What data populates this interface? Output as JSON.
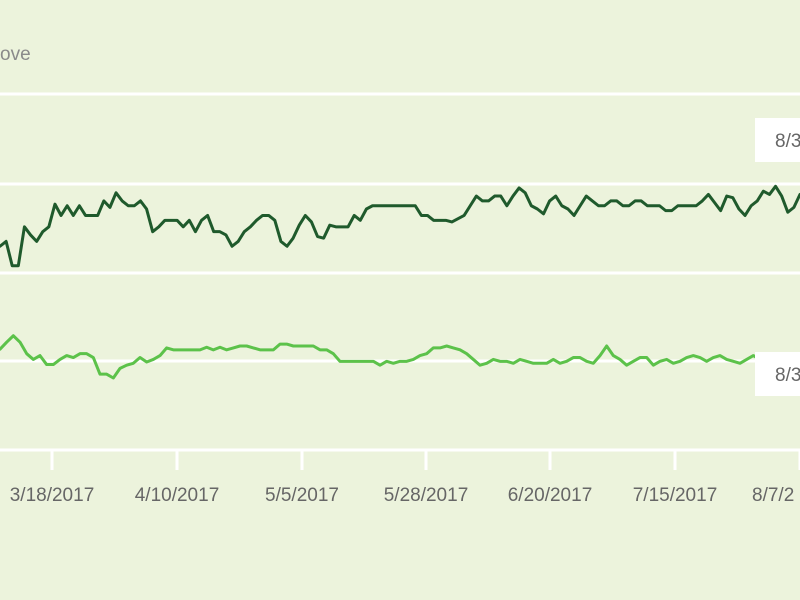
{
  "chart_data": {
    "type": "line",
    "legend_fragment": "ove",
    "x_tick_labels": [
      "3/18/2017",
      "4/10/2017",
      "5/5/2017",
      "5/28/2017",
      "6/20/2017",
      "7/15/2017",
      "8/7/2"
    ],
    "callouts": [
      "8/3",
      "8/3"
    ],
    "grid": true,
    "colors": {
      "upper_series": "#1f5a2c",
      "lower_series": "#5cc24a",
      "gridline": "#ffffff",
      "background": "#ecf3dc"
    },
    "series": [
      {
        "color": "#1f5a2c",
        "values": [
          54.7,
          55.0,
          53.5,
          53.5,
          55.9,
          55.4,
          55.0,
          55.6,
          55.9,
          57.3,
          56.6,
          57.2,
          56.6,
          57.2,
          56.6,
          56.6,
          56.6,
          57.5,
          57.1,
          58.0,
          57.5,
          57.2,
          57.2,
          57.5,
          57.0,
          55.6,
          55.9,
          56.3,
          56.3,
          56.3,
          55.9,
          56.3,
          55.6,
          56.3,
          56.6,
          55.6,
          55.6,
          55.4,
          54.7,
          55.0,
          55.6,
          55.9,
          56.3,
          56.6,
          56.6,
          56.3,
          55.0,
          54.7,
          55.2,
          56.0,
          56.6,
          56.2,
          55.3,
          55.2,
          56.0,
          55.9,
          55.9,
          55.9,
          56.6,
          56.3,
          57.0,
          57.2,
          57.2,
          57.2,
          57.2,
          57.2,
          57.2,
          57.2,
          57.2,
          56.6,
          56.6,
          56.3,
          56.3,
          56.3,
          56.2,
          56.4,
          56.6,
          57.2,
          57.8,
          57.5,
          57.5,
          57.8,
          57.8,
          57.2,
          57.8,
          58.3,
          58.0,
          57.2,
          57.0,
          56.7,
          57.5,
          57.8,
          57.2,
          57.0,
          56.6,
          57.2,
          57.8,
          57.5,
          57.2,
          57.2,
          57.5,
          57.5,
          57.2,
          57.2,
          57.5,
          57.5,
          57.2,
          57.2,
          57.2,
          56.9,
          56.9,
          57.2,
          57.2,
          57.2,
          57.2,
          57.5,
          57.9,
          57.4,
          56.9,
          57.8,
          57.7,
          57.0,
          56.6,
          57.2,
          57.5,
          58.1,
          57.9,
          58.4,
          57.8,
          56.8,
          57.1,
          57.9
        ],
        "y_range": [
          52,
          62
        ]
      },
      {
        "color": "#5cc24a",
        "values": [
          39.5,
          40.6,
          41.6,
          40.6,
          38.8,
          37.9,
          38.5,
          37.1,
          37.1,
          37.9,
          38.5,
          38.2,
          38.8,
          38.8,
          38.2,
          35.6,
          35.6,
          35.0,
          36.5,
          37.0,
          37.3,
          38.2,
          37.5,
          37.9,
          38.5,
          39.7,
          39.4,
          39.4,
          39.4,
          39.4,
          39.4,
          39.8,
          39.4,
          39.8,
          39.4,
          39.7,
          40.0,
          40.0,
          39.7,
          39.4,
          39.4,
          39.4,
          40.3,
          40.3,
          40.0,
          40.0,
          40.0,
          40.0,
          39.4,
          39.4,
          38.8,
          37.6,
          37.6,
          37.6,
          37.6,
          37.6,
          37.6,
          37.0,
          37.6,
          37.3,
          37.6,
          37.6,
          37.9,
          38.5,
          38.8,
          39.7,
          39.7,
          40.0,
          39.7,
          39.4,
          38.8,
          37.9,
          37.0,
          37.3,
          37.9,
          37.6,
          37.6,
          37.3,
          37.9,
          37.6,
          37.3,
          37.3,
          37.3,
          37.9,
          37.3,
          37.6,
          38.2,
          38.2,
          37.6,
          37.3,
          38.5,
          40.0,
          38.5,
          37.9,
          37.0,
          37.6,
          38.2,
          38.2,
          37.0,
          37.6,
          37.9,
          37.3,
          37.6,
          38.2,
          38.5,
          38.2,
          37.6,
          38.2,
          38.5,
          37.9,
          37.6,
          37.3,
          37.9,
          38.5,
          37.9,
          37.6,
          37.3,
          38.2,
          38.2,
          38.0,
          37.2
        ],
        "y_range": [
          30,
          45
        ]
      }
    ]
  }
}
